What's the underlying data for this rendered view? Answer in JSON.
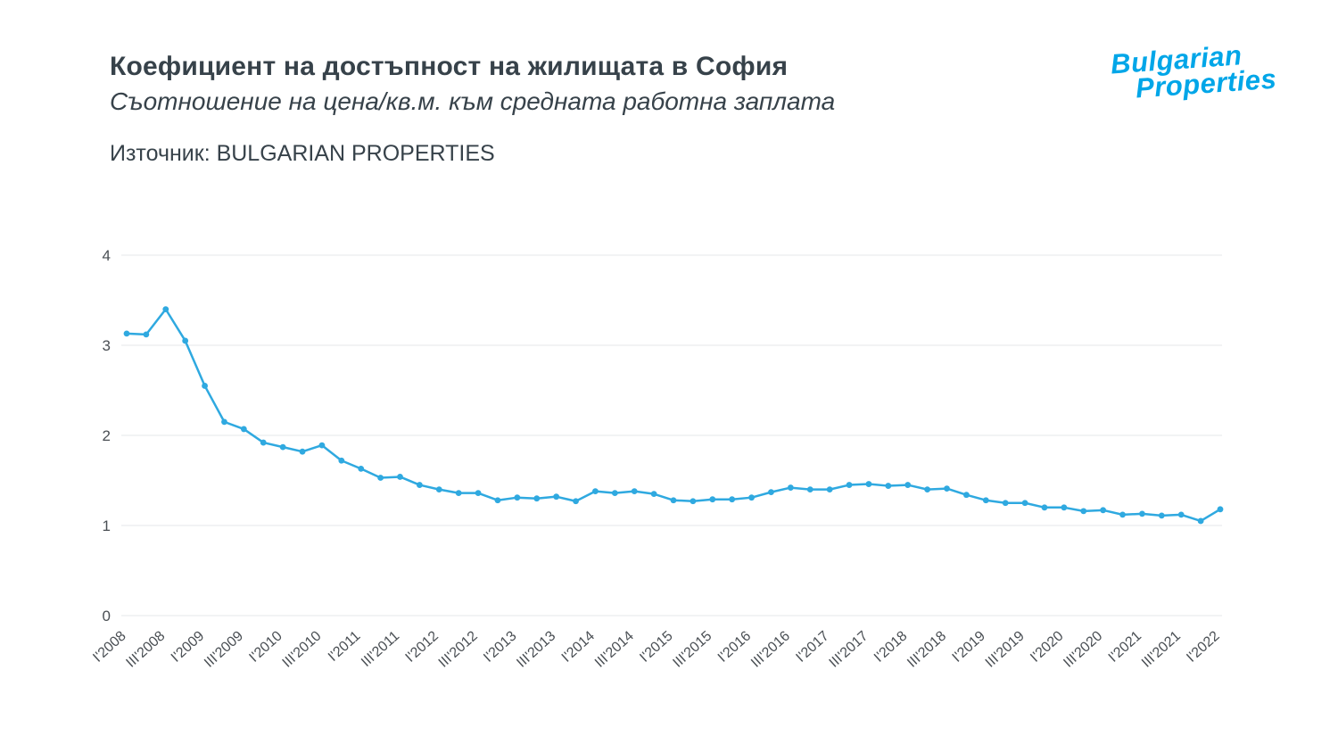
{
  "header": {
    "title": "Коефициент на достъпност на жилищата в София",
    "subtitle": "Съотношение на цена/кв.м. към средната работна заплата",
    "source": "Източник: BULGARIAN PROPERTIES",
    "logo_line1": "Bulgarian",
    "logo_line2": "Properties",
    "logo_color": "#00a6e8"
  },
  "chart_data": {
    "type": "line",
    "title": "Коефициент на достъпност на жилищата в София",
    "subtitle": "Съотношение на цена/кв.м. към средната работна заплата",
    "line_color": "#2fa9e0",
    "grid_color": "#e4e7e9",
    "tick_label_color": "#4a4f54",
    "grid": true,
    "legend": "none",
    "ylim": [
      0,
      4
    ],
    "yticks": [
      0,
      1,
      2,
      3,
      4
    ],
    "x_tick_step": 2,
    "x": [
      "I'2008",
      "II'2008",
      "III'2008",
      "IV'2008",
      "I'2009",
      "II'2009",
      "III'2009",
      "IV'2009",
      "I'2010",
      "II'2010",
      "III'2010",
      "IV'2010",
      "I'2011",
      "II'2011",
      "III'2011",
      "IV'2011",
      "I'2012",
      "II'2012",
      "III'2012",
      "IV'2012",
      "I'2013",
      "II'2013",
      "III'2013",
      "IV'2013",
      "I'2014",
      "II'2014",
      "III'2014",
      "IV'2014",
      "I'2015",
      "II'2015",
      "III'2015",
      "IV'2015",
      "I'2016",
      "II'2016",
      "III'2016",
      "IV'2016",
      "I'2017",
      "II'2017",
      "III'2017",
      "IV'2017",
      "I'2018",
      "II'2018",
      "III'2018",
      "IV'2018",
      "I'2019",
      "II'2019",
      "III'2019",
      "IV'2019",
      "I'2020",
      "II'2020",
      "III'2020",
      "IV'2020",
      "I'2021",
      "II'2021",
      "III'2021",
      "IV'2021",
      "I'2022"
    ],
    "values": [
      3.13,
      3.12,
      3.4,
      3.05,
      2.55,
      2.15,
      2.07,
      1.92,
      1.87,
      1.82,
      1.89,
      1.72,
      1.63,
      1.53,
      1.54,
      1.45,
      1.4,
      1.36,
      1.36,
      1.28,
      1.31,
      1.3,
      1.32,
      1.27,
      1.38,
      1.36,
      1.38,
      1.35,
      1.28,
      1.27,
      1.29,
      1.29,
      1.31,
      1.37,
      1.42,
      1.4,
      1.4,
      1.45,
      1.46,
      1.44,
      1.45,
      1.4,
      1.41,
      1.34,
      1.28,
      1.25,
      1.25,
      1.2,
      1.2,
      1.16,
      1.17,
      1.12,
      1.13,
      1.11,
      1.12,
      1.05,
      1.18
    ]
  }
}
